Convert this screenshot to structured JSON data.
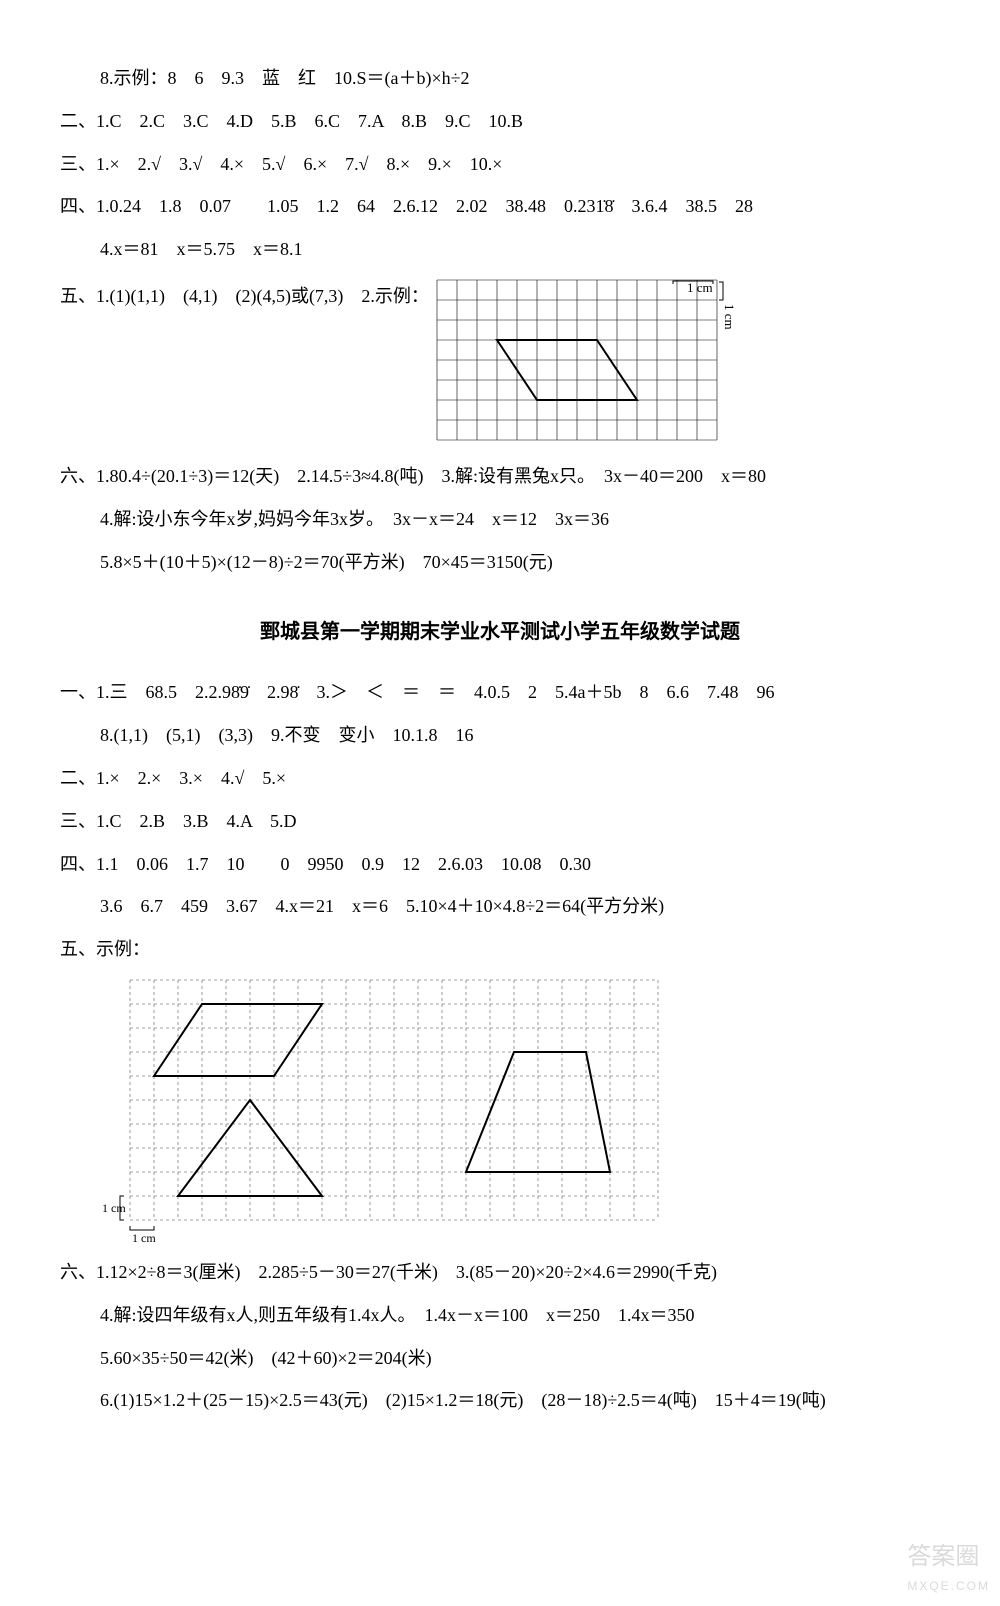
{
  "top": {
    "l1": "8.示例：8　6　9.3　蓝　红　10.S＝(a＋b)×h÷2",
    "l2": "二、1.C　2.C　3.C　4.D　5.B　6.C　7.A　8.B　9.C　10.B",
    "l3": "三、1.×　2.√　3.√　4.×　5.√　6.×　7.√　8.×　9.×　10.×",
    "l4": "四、1.0.24　1.8　0.07　　1.05　1.2　64　2.6.12　2.02　38.48　0.231̇8̇　3.6.4　38.5　28",
    "l5": "4.x＝81　x＝5.75　x＝8.1",
    "l6a": "五、1.(1)(1,1)　(4,1)　(2)(4,5)或(7,3)　2.示例：",
    "grid1": {
      "cols": 14,
      "rows": 8,
      "cell": 20,
      "label_top": "1 cm",
      "label_right": "1 cm",
      "grid_color": "#000000",
      "shape": {
        "points": [
          [
            3,
            3
          ],
          [
            8,
            3
          ],
          [
            10,
            6
          ],
          [
            5,
            6
          ]
        ],
        "stroke": "#000000"
      }
    },
    "l7": "六、1.80.4÷(20.1÷3)＝12(天)　2.14.5÷3≈4.8(吨)　3.解:设有黑兔x只。　3x－40＝200　x＝80",
    "l8": "4.解:设小东今年x岁,妈妈今年3x岁。　3x－x＝24　x＝12　3x＝36",
    "l9": "5.8×5＋(10＋5)×(12－8)÷2＝70(平方米)　70×45＝3150(元)"
  },
  "title2": "鄄城县第一学期期末学业水平测试小学五年级数学试题",
  "bot": {
    "b1": "一、1.三　68.5　2.2.98̇9̇　2.98̇　3.＞　＜　＝　＝　4.0.5　2　5.4a＋5b　8　6.6　7.48　96",
    "b2": "8.(1,1)　(5,1)　(3,3)　9.不变　变小　10.1.8　16",
    "b3": "二、1.×　2.×　3.×　4.√　5.×",
    "b4": "三、1.C　2.B　3.B　4.A　5.D",
    "b5": "四、1.1　0.06　1.7　10　　0　9950　0.9　12　2.6.03　10.08　0.30",
    "b6": "3.6　6.7　459　3.67　4.x＝21　x＝6　5.10×4＋10×4.8÷2＝64(平方分米)",
    "b7": "五、示例：",
    "grid2": {
      "cols": 22,
      "rows": 10,
      "cell": 24,
      "label_bl_v": "1 cm",
      "label_bl_h": "1 cm",
      "grid_color": "#808080",
      "shapes": [
        {
          "type": "parallelogram",
          "points": [
            [
              3,
              1
            ],
            [
              8,
              1
            ],
            [
              6,
              4
            ],
            [
              1,
              4
            ]
          ],
          "stroke": "#000000"
        },
        {
          "type": "triangle",
          "points": [
            [
              5,
              5
            ],
            [
              8,
              9
            ],
            [
              2,
              9
            ]
          ],
          "stroke": "#000000"
        },
        {
          "type": "trapezoid",
          "points": [
            [
              16,
              3
            ],
            [
              19,
              3
            ],
            [
              20,
              8
            ],
            [
              14,
              8
            ]
          ],
          "stroke": "#000000"
        }
      ]
    },
    "c1": "六、1.12×2÷8＝3(厘米)　2.285÷5－30＝27(千米)　3.(85－20)×20÷2×4.6＝2990(千克)",
    "c2": "4.解:设四年级有x人,则五年级有1.4x人。　1.4x－x＝100　x＝250　1.4x＝350",
    "c3": "5.60×35÷50＝42(米)　(42＋60)×2＝204(米)",
    "c4": "6.(1)15×1.2＋(25－15)×2.5＝43(元)　(2)15×1.2＝18(元)　(28－18)÷2.5＝4(吨)　15＋4＝19(吨)"
  },
  "watermark": {
    "main": "答案圈",
    "sub": "MXQE.COM"
  }
}
